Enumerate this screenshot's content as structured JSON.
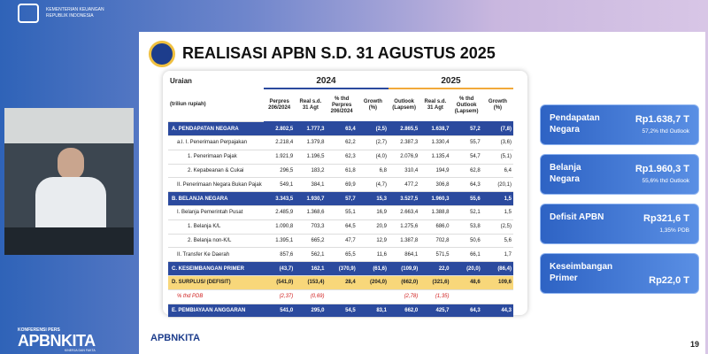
{
  "header": {
    "ministry": "KEMENTERIAN KEUANGAN",
    "country": "REPUBLIK INDONESIA"
  },
  "event": {
    "label": "KONFERENSI PERS",
    "brand": "APBNKITA",
    "tagline": "KINERJA DAN FAKTA"
  },
  "slide": {
    "title": "REALISASI APBN S.D. 31 AGUSTUS 2025",
    "footer_logo": "APBNKITA",
    "page": "19"
  },
  "table": {
    "label_header": "Uraian",
    "unit": "(triliun rupiah)",
    "groups": [
      "2024",
      "2025"
    ],
    "columns": [
      "Perpres 206/2024",
      "Real s.d. 31 Agt",
      "% thd Perpres 206/2024",
      "Growth (%)",
      "Outlook (Lapsem)",
      "Real s.d. 31 Agt",
      "% thd Outlook (Lapsem)",
      "Growth (%)"
    ],
    "rows": [
      [
        "A. PENDAPATAN NEGARA",
        "2.802,5",
        "1.777,3",
        "63,4",
        "(2,5)",
        "2.865,5",
        "1.638,7",
        "57,2",
        "(7,8)"
      ],
      [
        "a.l. I. Penerimaan Perpajakan",
        "2.218,4",
        "1.379,8",
        "62,2",
        "(2,7)",
        "2.387,3",
        "1.330,4",
        "55,7",
        "(3,6)"
      ],
      [
        "1. Penerimaan Pajak",
        "1.921,9",
        "1.196,5",
        "62,3",
        "(4,0)",
        "2.076,9",
        "1.135,4",
        "54,7",
        "(5,1)"
      ],
      [
        "2. Kepabeanan & Cukai",
        "296,5",
        "183,2",
        "61,8",
        "6,8",
        "310,4",
        "194,9",
        "62,8",
        "6,4"
      ],
      [
        "II. Penerimaan Negara Bukan Pajak",
        "549,1",
        "384,1",
        "69,9",
        "(4,7)",
        "477,2",
        "306,8",
        "64,3",
        "(20,1)"
      ],
      [
        "B. BELANJA NEGARA",
        "3.343,5",
        "1.930,7",
        "57,7",
        "15,3",
        "3.527,5",
        "1.960,3",
        "55,6",
        "1,5"
      ],
      [
        "I. Belanja Pemerintah Pusat",
        "2.485,9",
        "1.368,6",
        "55,1",
        "16,9",
        "2.663,4",
        "1.388,8",
        "52,1",
        "1,5"
      ],
      [
        "1. Belanja K/L",
        "1.090,8",
        "703,3",
        "64,5",
        "20,9",
        "1.275,6",
        "686,0",
        "53,8",
        "(2,5)"
      ],
      [
        "2. Belanja non-K/L",
        "1.395,1",
        "665,2",
        "47,7",
        "12,9",
        "1.387,8",
        "702,8",
        "50,6",
        "5,6"
      ],
      [
        "II. Transfer Ke Daerah",
        "857,6",
        "562,1",
        "65,5",
        "11,6",
        "864,1",
        "571,5",
        "66,1",
        "1,7"
      ],
      [
        "C. KESEIMBANGAN PRIMER",
        "(43,7)",
        "162,1",
        "(370,9)",
        "(61,6)",
        "(109,9)",
        "22,0",
        "(20,0)",
        "(86,4)"
      ],
      [
        "D. SURPLUS/ (DEFISIT)",
        "(541,0)",
        "(153,4)",
        "28,4",
        "(204,0)",
        "(662,0)",
        "(321,6)",
        "48,6",
        "109,6"
      ],
      [
        "% thd PDB",
        "(2,37)",
        "(0,69)",
        null,
        null,
        "(2,78)",
        "(1,35)",
        null,
        null
      ],
      [
        "E. PEMBIAYAAN ANGGARAN",
        "541,0",
        "295,0",
        "54,5",
        "83,1",
        "662,0",
        "425,7",
        "64,3",
        "44,3"
      ]
    ]
  },
  "cards": [
    {
      "title": "Pendapatan Negara",
      "value": "Rp1.638,7 T",
      "note": "57,2% thd Outlook"
    },
    {
      "title": "Belanja Negara",
      "value": "Rp1.960,3 T",
      "note": "55,6% thd Outlook"
    },
    {
      "title": "Defisit APBN",
      "value": "Rp321,6 T",
      "note": "1,35% PDB"
    },
    {
      "title": "Keseimbangan Primer",
      "value": "Rp22,0 T",
      "note": null
    }
  ]
}
